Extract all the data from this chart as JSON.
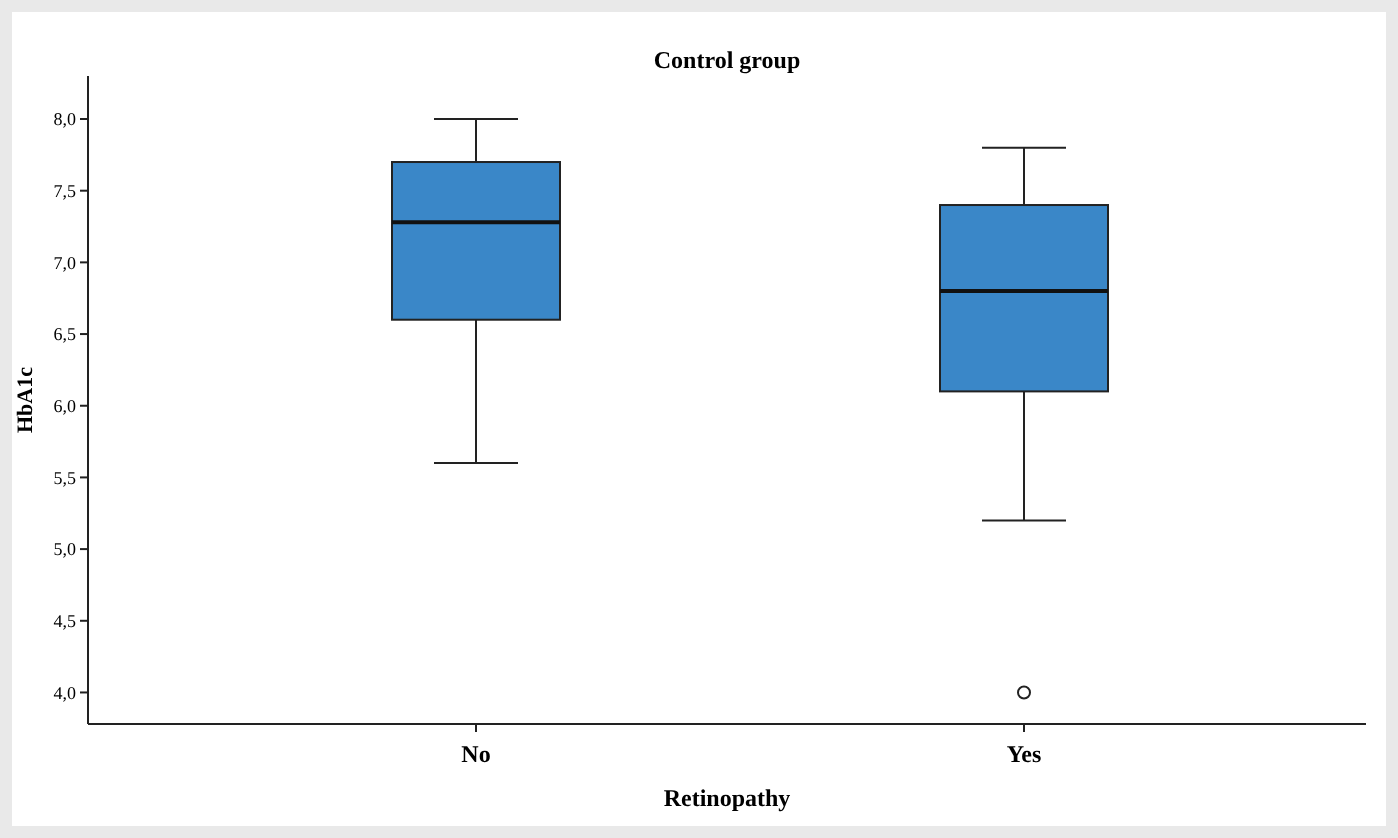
{
  "chart_data": {
    "type": "box",
    "title": "Control group",
    "xlabel": "Retinopathy",
    "ylabel": "HbA1c",
    "categories": [
      "No",
      "Yes"
    ],
    "color": "#3a87c8",
    "boxes": [
      {
        "low": 5.6,
        "q1": 6.6,
        "median": 7.28,
        "q3": 7.7,
        "high": 8.0
      },
      {
        "low": 5.2,
        "q1": 6.1,
        "median": 6.8,
        "q3": 7.4,
        "high": 7.8,
        "outliers": [
          4.0
        ]
      }
    ],
    "ylim": [
      3.78,
      8.3
    ],
    "yticks": [
      {
        "value": 4,
        "label": "4,0"
      },
      {
        "value": 4.5,
        "label": "4,5"
      },
      {
        "value": 5,
        "label": "5,0"
      },
      {
        "value": 5.5,
        "label": "5,5"
      },
      {
        "value": 6,
        "label": "6,0"
      },
      {
        "value": 6.5,
        "label": "6,5"
      },
      {
        "value": 7,
        "label": "7,0"
      },
      {
        "value": 7.5,
        "label": "7,5"
      },
      {
        "value": 8,
        "label": "8,0"
      }
    ],
    "grid": false
  }
}
